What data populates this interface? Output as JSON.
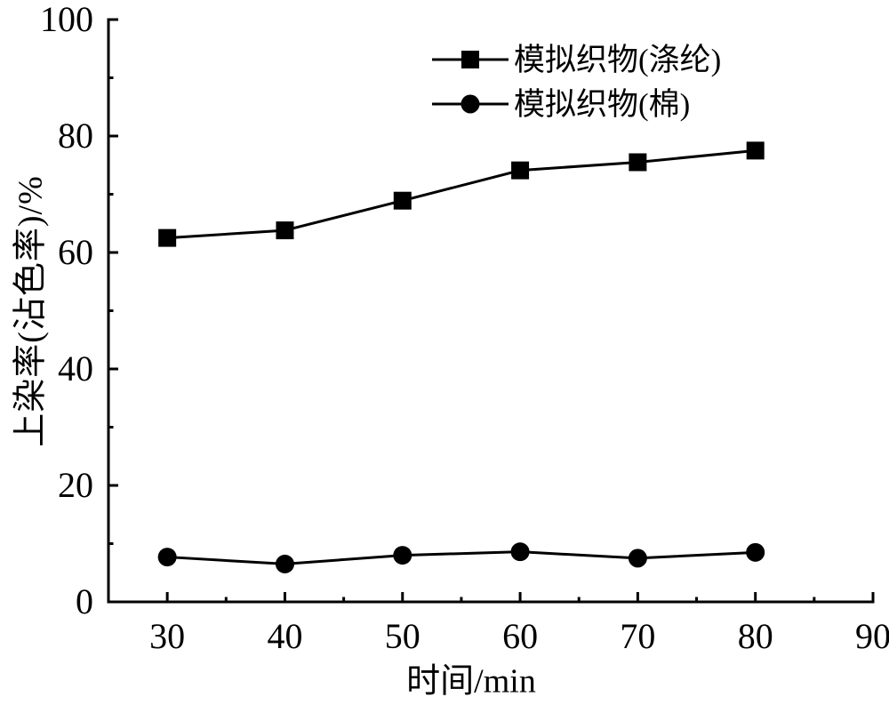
{
  "figure": {
    "background": "#ffffff",
    "ink_color": "#000000"
  },
  "chart_data": {
    "type": "line",
    "title": "",
    "xlabel": "时间/min",
    "ylabel": "上染率(沾色率)/%",
    "x": [
      30,
      40,
      50,
      60,
      70,
      80
    ],
    "series": [
      {
        "name": "模拟织物(涤纶)",
        "marker": "square",
        "color": "#000000",
        "values": [
          62.5,
          63.8,
          68.9,
          74.1,
          75.5,
          77.5
        ]
      },
      {
        "name": "模拟织物(棉)",
        "marker": "circle",
        "color": "#000000",
        "values": [
          7.7,
          6.5,
          8.0,
          8.6,
          7.5,
          8.5
        ]
      }
    ],
    "xlim": [
      25,
      90
    ],
    "ylim": [
      0,
      100
    ],
    "x_major_ticks": [
      30,
      40,
      50,
      60,
      70,
      80,
      90
    ],
    "x_minor_ticks": [
      35,
      45,
      55,
      65,
      75,
      85
    ],
    "y_major_ticks": [
      0,
      20,
      40,
      60,
      80,
      100
    ],
    "y_minor_ticks": [
      10,
      30,
      50,
      70,
      90
    ],
    "grid": false,
    "legend_position": "top-center-inside"
  }
}
